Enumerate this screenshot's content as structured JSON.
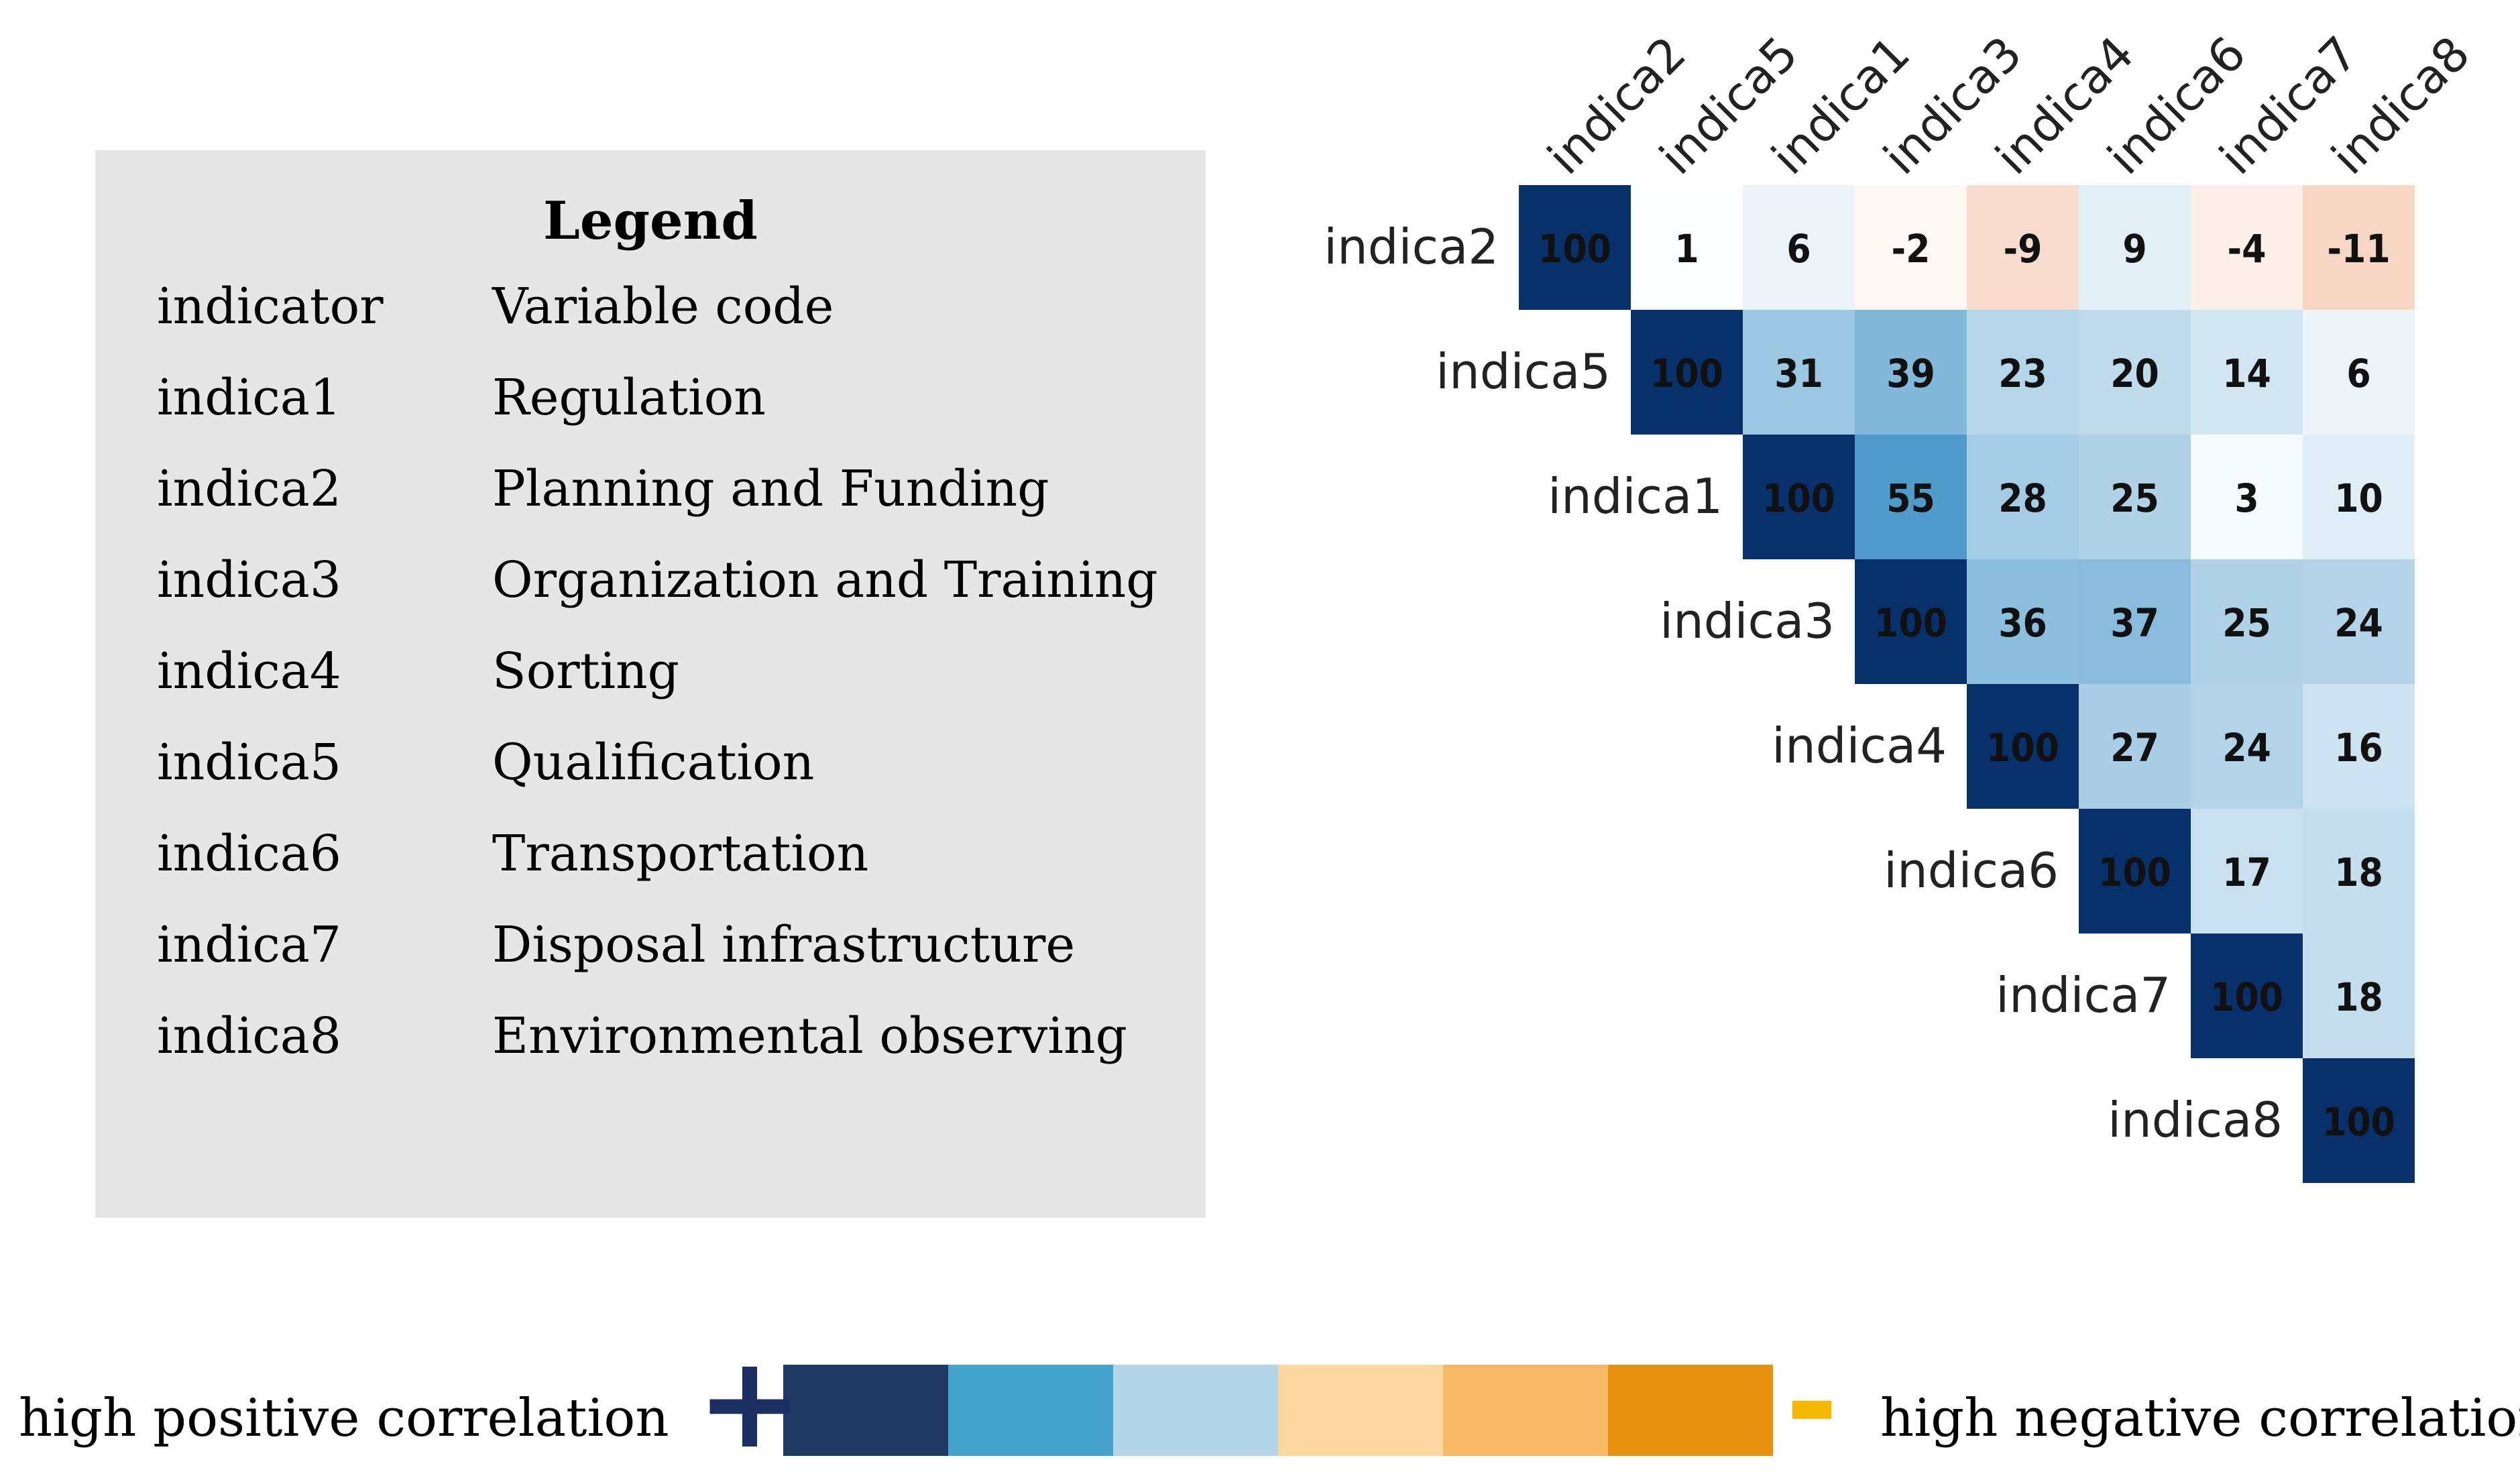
{
  "legend": {
    "title": "Legend",
    "header": {
      "code": "indicator",
      "description": "Variable code"
    },
    "items": [
      {
        "code": "indica1",
        "description": "Regulation"
      },
      {
        "code": "indica2",
        "description": "Planning and Funding"
      },
      {
        "code": "indica3",
        "description": "Organization and Training"
      },
      {
        "code": "indica4",
        "description": "Sorting"
      },
      {
        "code": "indica5",
        "description": "Qualification"
      },
      {
        "code": "indica6",
        "description": "Transportation"
      },
      {
        "code": "indica7",
        "description": "Disposal infrastructure"
      },
      {
        "code": "indica8",
        "description": "Environmental observing"
      }
    ]
  },
  "chart_data": {
    "type": "heatmap",
    "title": "",
    "variables": [
      "indica2",
      "indica5",
      "indica1",
      "indica3",
      "indica4",
      "indica6",
      "indica7",
      "indica8"
    ],
    "matrix": [
      [
        100,
        1,
        6,
        -2,
        -9,
        9,
        -4,
        -11
      ],
      [
        null,
        100,
        31,
        39,
        23,
        20,
        14,
        6
      ],
      [
        null,
        null,
        100,
        55,
        28,
        25,
        3,
        10
      ],
      [
        null,
        null,
        null,
        100,
        36,
        37,
        25,
        24
      ],
      [
        null,
        null,
        null,
        null,
        100,
        27,
        24,
        16
      ],
      [
        null,
        null,
        null,
        null,
        null,
        100,
        17,
        18
      ],
      [
        null,
        null,
        null,
        null,
        null,
        null,
        100,
        18
      ],
      [
        null,
        null,
        null,
        null,
        null,
        null,
        null,
        100
      ]
    ],
    "layout": "upper-triangle",
    "value_range": [
      -100,
      100
    ],
    "colors": {
      "positive_max": "#08306b",
      "positive_mid": "#4f9bcb",
      "neutral": "#ffffff",
      "negative": "#f7d6c3"
    }
  },
  "scale_legend": {
    "left_label": "high positive correlation",
    "right_label": "high negative correlation",
    "plus_symbol": "+",
    "minus_symbol": "-",
    "plus_color": "#1b2f63",
    "minus_color": "#f5b800",
    "swatches": [
      "#1f3a63",
      "#44a4cc",
      "#b2d6e8",
      "#fdd7a0",
      "#f7b866",
      "#e8910f"
    ]
  }
}
